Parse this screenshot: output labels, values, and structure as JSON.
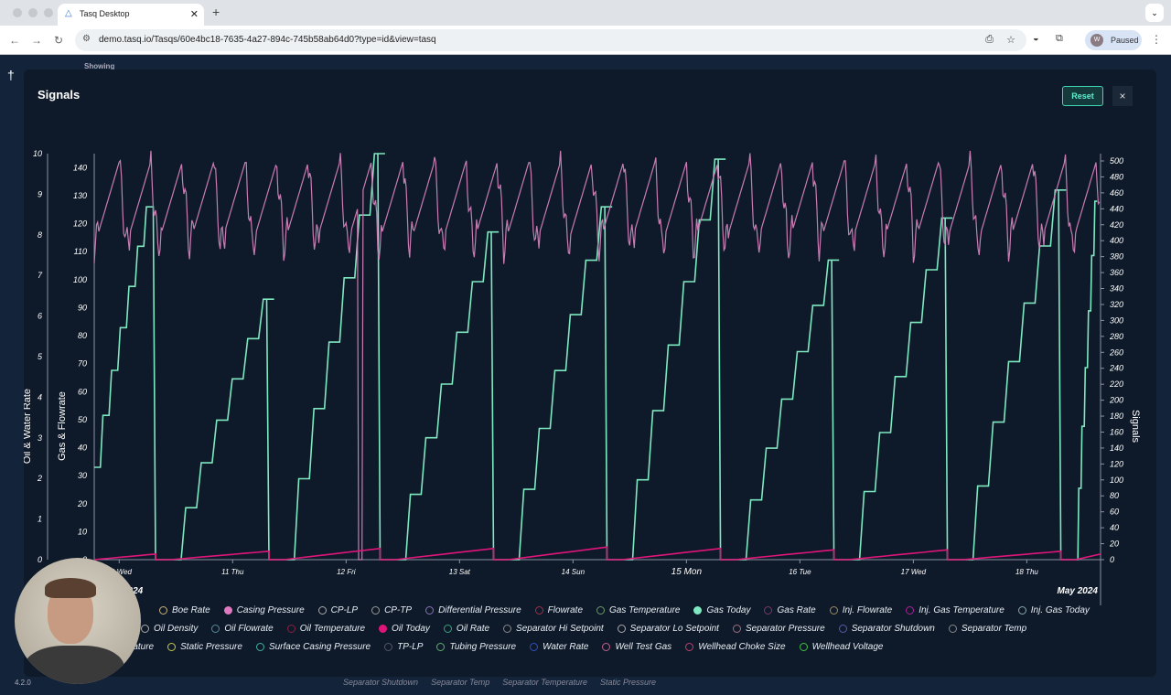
{
  "browser": {
    "tab_title": "Tasq Desktop",
    "url": "demo.tasq.io/Tasqs/60e4bc18-7635-4a27-894c-745b58ab64d0?type=id&view=tasq",
    "profile_initial": "W",
    "profile_status": "Paused"
  },
  "background": {
    "showing": "Showing",
    "version": "4.2.0",
    "behind_legend": [
      "Separator Shutdown",
      "Separator Temp",
      "Separator Temperature",
      "Static Pressure"
    ]
  },
  "modal": {
    "title": "Signals",
    "reset_label": "Reset",
    "close_label": "×"
  },
  "colors": {
    "gas_today": "#7ee8c0",
    "casing_pressure": "#c97cb4",
    "oil_today": "#e0157a",
    "axis": "#8a93a3"
  },
  "chart_data": {
    "type": "line",
    "ylabel_left1": "Oil & Water Rate",
    "ylabel_left2": "Gas & Flowrate",
    "ylabel_right": "Signals",
    "y1_ticks": [
      "0",
      "1",
      "2",
      "3",
      "4",
      "5",
      "6",
      "7",
      "8",
      "9",
      "10"
    ],
    "y2_ticks": [
      "0",
      "10",
      "20",
      "30",
      "40",
      "50",
      "60",
      "70",
      "80",
      "90",
      "100",
      "110",
      "120",
      "130",
      "140"
    ],
    "y3_ticks": [
      "0",
      "20",
      "40",
      "60",
      "80",
      "100",
      "120",
      "140",
      "160",
      "180",
      "200",
      "220",
      "240",
      "260",
      "280",
      "300",
      "320",
      "340",
      "360",
      "380",
      "400",
      "420",
      "440",
      "460",
      "480",
      "500"
    ],
    "x_ticks": [
      {
        "day": 10,
        "label": "10 Wed"
      },
      {
        "day": 11,
        "label": "11 Thu"
      },
      {
        "day": 12,
        "label": "12 Fri"
      },
      {
        "day": 13,
        "label": "13 Sat"
      },
      {
        "day": 14,
        "label": "14 Sun"
      },
      {
        "day": 15,
        "label": "15 Mon"
      },
      {
        "day": 16,
        "label": "16 Tue"
      },
      {
        "day": 17,
        "label": "17 Wed"
      },
      {
        "day": 18,
        "label": "18 Thu"
      }
    ],
    "x_range_days": [
      9.78,
      18.65
    ],
    "x_labels_major": {
      "start": "2024",
      "end": "May 2024"
    },
    "y2_range": [
      0,
      145
    ],
    "series": [
      {
        "name": "Gas Today",
        "axis": "gas",
        "cycle_resets_day": [
          10.32,
          11.32,
          12.3,
          13.3,
          14.3,
          15.3,
          16.3,
          17.3,
          18.3
        ],
        "cycle_peaks": [
          126,
          93,
          145,
          117,
          126,
          143,
          107,
          122,
          132,
          128,
          15
        ]
      },
      {
        "name": "Casing Pressure",
        "axis": "gas",
        "range": [
          108,
          142
        ],
        "dip_day": 12.12
      },
      {
        "name": "Oil Today",
        "axis": "gas",
        "cycle_peaks": [
          2,
          3,
          4,
          4,
          4.5,
          4,
          3.5,
          3.5,
          3,
          2
        ]
      }
    ]
  },
  "legend": [
    [
      "Boe Rate",
      "Casing Pressure",
      "CP-LP",
      "CP-TP",
      "Differential Pressure",
      "Flowrate",
      "Gas Temperature",
      "Gas Today",
      "Gas Rate",
      "Inj. Flowrate",
      "Inj. Gas Temperature",
      "Inj. Gas Today"
    ],
    [
      "Oil Density",
      "Oil Flowrate",
      "Oil Temperature",
      "Oil Today",
      "Oil Rate",
      "Separator Hi Setpoint",
      "Separator Lo Setpoint",
      "Separator Pressure",
      "Separator Shutdown",
      "Separator Temp"
    ],
    [
      "rature",
      "Static Pressure",
      "Surface Casing Pressure",
      "TP-LP",
      "Tubing Pressure",
      "Water Rate",
      "Well Test Gas",
      "Wellhead Choke Size",
      "Wellhead Voltage"
    ]
  ],
  "legend_colors": [
    [
      "#c9b27a",
      "#e07ac0",
      "#aaa",
      "#999",
      "#8c72b8",
      "#a0304a",
      "#6a9a6a",
      "#7ee8c0",
      "#7a3a6a",
      "#a08a60",
      "#b0209a",
      "#8aa8a8"
    ],
    [
      "#aaa",
      "#5a8a9a",
      "#8a2040",
      "#e0157a",
      "#3aa080",
      "#888",
      "#aaa",
      "#a07080",
      "#5a5ab0",
      "#888"
    ],
    [
      "#aaa",
      "#c8c850",
      "#40b0a0",
      "#556",
      "#60b070",
      "#3050c0",
      "#c06090",
      "#c04070",
      "#40c040"
    ]
  ],
  "legend_filled": [
    "Casing Pressure",
    "Gas Today",
    "Oil Today"
  ]
}
